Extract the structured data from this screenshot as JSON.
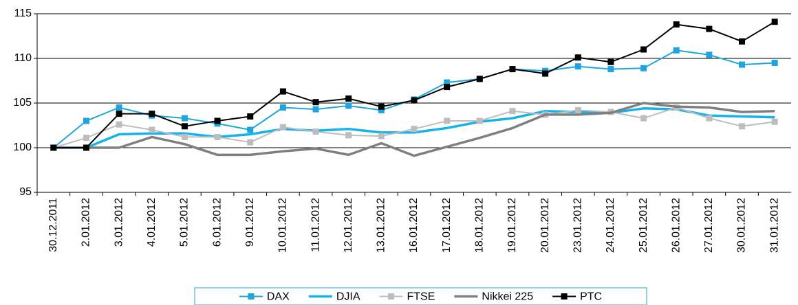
{
  "chart_data": {
    "type": "line",
    "categories": [
      "30.12.2011",
      "2.01.2012",
      "3.01.2012",
      "4.01.2012",
      "5.01.2012",
      "6.01.2012",
      "9.01.2012",
      "10.01.2012",
      "11.01.2012",
      "12.01.2012",
      "13.01.2012",
      "16.01.2012",
      "17.01.2012",
      "18.01.2012",
      "19.01.2012",
      "20.01.2012",
      "23.01.2012",
      "24.01.2012",
      "25.01.2012",
      "26.01.2012",
      "27.01.2012",
      "30.01.2012",
      "31.01.2012"
    ],
    "series": [
      {
        "name": "DAX",
        "color": "#1ea5e0",
        "marker": "square",
        "values": [
          100,
          103,
          104.5,
          103.6,
          103.3,
          102.7,
          102,
          104.5,
          104.3,
          104.7,
          104.2,
          105.4,
          107.3,
          107.7,
          108.8,
          108.6,
          109.1,
          108.8,
          108.9,
          110.9,
          110.4,
          109.3,
          109.5
        ]
      },
      {
        "name": "DJIA",
        "color": "#14b4ea",
        "marker": "none",
        "values": [
          100,
          100,
          101.5,
          101.6,
          101.6,
          101.2,
          101.5,
          102.1,
          101.9,
          102.1,
          101.7,
          101.7,
          102.2,
          102.9,
          103.3,
          104.1,
          104,
          103.9,
          104.4,
          104.3,
          103.6,
          103.5,
          103.4
        ]
      },
      {
        "name": "FTSE",
        "color": "#bdbdbd",
        "marker": "square",
        "values": [
          100,
          101.1,
          102.6,
          102,
          101.2,
          101.2,
          100.6,
          102.3,
          101.8,
          101.4,
          101.3,
          102.1,
          103,
          103,
          104.1,
          103.7,
          104.2,
          104,
          103.3,
          104.5,
          103.3,
          102.4,
          102.9
        ]
      },
      {
        "name": "Nikkei 225",
        "color": "#7f7f7f",
        "marker": "none",
        "values": [
          100,
          100,
          100,
          101.2,
          100.4,
          99.2,
          99.2,
          99.6,
          99.9,
          99.2,
          100.5,
          99.1,
          100.1,
          101.1,
          102.2,
          103.7,
          103.7,
          103.9,
          105,
          104.6,
          104.5,
          104,
          104.1
        ]
      },
      {
        "name": "PTC",
        "color": "#000000",
        "marker": "square",
        "values": [
          100,
          100,
          103.8,
          103.8,
          102.4,
          103,
          103.5,
          106.3,
          105.1,
          105.5,
          104.6,
          105.3,
          106.8,
          107.7,
          108.8,
          108.3,
          110.1,
          109.6,
          111,
          113.8,
          113.3,
          111.9,
          114.1
        ]
      }
    ],
    "ylim": [
      95,
      115
    ],
    "yticks": [
      95,
      100,
      105,
      110,
      115
    ],
    "grid": true,
    "legend": "bottom"
  }
}
